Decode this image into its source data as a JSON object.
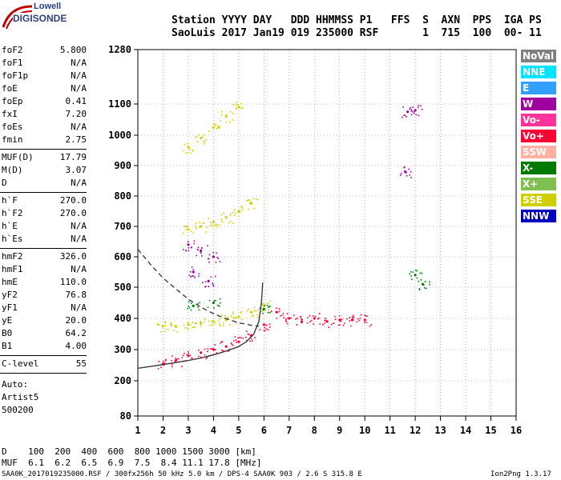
{
  "logo": {
    "line1": "Lowell",
    "line2": "DIGISONDE"
  },
  "header": {
    "line1": "Station YYYY DAY   DDD HHMMSS P1   FFS  S  AXN  PPS  IGA PS",
    "line2": "SaoLuis 2017 Jan19 019 235000 RSF       1  715  100  00- 11"
  },
  "params_groups": [
    [
      {
        "k": "foF2",
        "v": "5.800"
      },
      {
        "k": "foF1",
        "v": "N/A"
      },
      {
        "k": "foF1p",
        "v": "N/A"
      },
      {
        "k": "foE",
        "v": "N/A"
      },
      {
        "k": "foEp",
        "v": "0.41"
      },
      {
        "k": "fxI",
        "v": "7.20"
      },
      {
        "k": "foEs",
        "v": "N/A"
      },
      {
        "k": "fmin",
        "v": "2.75"
      }
    ],
    [
      {
        "k": "MUF(D)",
        "v": "17.79"
      },
      {
        "k": "M(D)",
        "v": "3.07"
      },
      {
        "k": "D",
        "v": "N/A"
      }
    ],
    [
      {
        "k": "h`F",
        "v": "270.0"
      },
      {
        "k": "h`F2",
        "v": "270.0"
      },
      {
        "k": "h`E",
        "v": "N/A"
      },
      {
        "k": "h`Es",
        "v": "N/A"
      }
    ],
    [
      {
        "k": "hmF2",
        "v": "326.0"
      },
      {
        "k": "hmF1",
        "v": "N/A"
      },
      {
        "k": "hmE",
        "v": "110.0"
      },
      {
        "k": "yF2",
        "v": "76.8"
      },
      {
        "k": "yF1",
        "v": "N/A"
      },
      {
        "k": "yE",
        "v": "20.0"
      },
      {
        "k": "B0",
        "v": "64.2"
      },
      {
        "k": "B1",
        "v": "4.00"
      }
    ],
    [
      {
        "k": "C-level",
        "v": "55"
      }
    ]
  ],
  "auto": {
    "line1": "Auto:",
    "line2": "Artist5",
    "line3": "500200"
  },
  "legend": [
    {
      "label": "NoVal",
      "color": "#808080"
    },
    {
      "label": "NNE",
      "color": "#00e5ff"
    },
    {
      "label": "E",
      "color": "#33a0ff"
    },
    {
      "label": "W",
      "color": "#a000a0"
    },
    {
      "label": "Vo-",
      "color": "#ff3399"
    },
    {
      "label": "Vo+",
      "color": "#ff0033"
    },
    {
      "label": "SSW",
      "color": "#ffb0a0"
    },
    {
      "label": "X-",
      "color": "#007a00"
    },
    {
      "label": "X+",
      "color": "#80c050"
    },
    {
      "label": "SSE",
      "color": "#d0d000"
    },
    {
      "label": "NNW",
      "color": "#0000c0"
    }
  ],
  "footer": {
    "d_line": "D    100  200  400  600  800 1000 1500 3000 [km]",
    "muf_line": "MUF  6.1  6.2  6.5  6.9  7.5  8.4 11.1 17.8 [MHz]",
    "file_line": "SAA0K_2017019235000.RSF / 300fx256h 50 kHz 5.0 km / DPS-4 SAA0K 903 / 2.6 S 315.8 E",
    "version": "Ion2Png 1.3.17"
  },
  "chart_data": {
    "type": "scatter",
    "title": "",
    "xlabel": "",
    "ylabel": "",
    "xlim": [
      1,
      16
    ],
    "ylim": [
      80,
      1280
    ],
    "x_ticks": [
      "1",
      "2",
      "3",
      "4",
      "5",
      "6",
      "7",
      "8",
      "9",
      "10",
      "11",
      "12",
      "13",
      "14",
      "15",
      "16"
    ],
    "y_ticks": [
      {
        "v": 80,
        "label": "80"
      },
      {
        "v": 200,
        "label": "200"
      },
      {
        "v": 300,
        "label": "300"
      },
      {
        "v": 400,
        "label": "400"
      },
      {
        "v": 500,
        "label": "500"
      },
      {
        "v": 600,
        "label": "600"
      },
      {
        "v": 700,
        "label": "700"
      },
      {
        "v": 800,
        "label": "800"
      },
      {
        "v": 900,
        "label": "900"
      },
      {
        "v": 1000,
        "label": "1000"
      },
      {
        "v": 1100,
        "label": "1100"
      },
      {
        "v": 1280,
        "label": "1280"
      }
    ],
    "y_scale": "nonlinear (compressed above 1000 km)",
    "grid": "dotted",
    "series": [
      {
        "name": "Vo+",
        "color": "#ff0033",
        "points": [
          [
            2.0,
            255
          ],
          [
            2.5,
            265
          ],
          [
            3.0,
            280
          ],
          [
            3.5,
            290
          ],
          [
            4.0,
            300
          ],
          [
            4.5,
            310
          ],
          [
            5.0,
            325
          ],
          [
            5.5,
            345
          ],
          [
            6.0,
            380
          ],
          [
            6.5,
            420
          ],
          [
            7.0,
            400
          ],
          [
            7.5,
            390
          ],
          [
            8.0,
            400
          ],
          [
            8.5,
            390
          ],
          [
            9.0,
            395
          ],
          [
            9.5,
            395
          ],
          [
            10.0,
            395
          ]
        ]
      },
      {
        "name": "SSE",
        "color": "#d0d000",
        "points": [
          [
            2.0,
            375
          ],
          [
            2.5,
            375
          ],
          [
            3.0,
            380
          ],
          [
            3.5,
            385
          ],
          [
            4.0,
            390
          ],
          [
            4.5,
            395
          ],
          [
            5.0,
            405
          ],
          [
            5.5,
            420
          ],
          [
            6.0,
            440
          ],
          [
            3.0,
            690
          ],
          [
            3.5,
            700
          ],
          [
            4.0,
            715
          ],
          [
            4.5,
            730
          ],
          [
            5.0,
            750
          ],
          [
            5.5,
            775
          ],
          [
            3.0,
            960
          ],
          [
            3.5,
            990
          ],
          [
            4.0,
            1025
          ],
          [
            4.5,
            1060
          ],
          [
            5.0,
            1090
          ]
        ]
      },
      {
        "name": "W",
        "color": "#a000a0",
        "points": [
          [
            3.0,
            640
          ],
          [
            3.5,
            620
          ],
          [
            4.0,
            600
          ],
          [
            3.2,
            550
          ],
          [
            3.8,
            520
          ],
          [
            12.0,
            1080
          ],
          [
            11.7,
            1075
          ],
          [
            11.6,
            880
          ]
        ]
      },
      {
        "name": "X-",
        "color": "#007a00",
        "points": [
          [
            3.2,
            440
          ],
          [
            4.0,
            450
          ],
          [
            6.0,
            430
          ],
          [
            12.0,
            540
          ],
          [
            12.3,
            510
          ]
        ]
      }
    ],
    "lines": [
      {
        "name": "trace",
        "style": "solid",
        "points": [
          [
            1,
            240
          ],
          [
            2,
            252
          ],
          [
            3,
            265
          ],
          [
            3.5,
            273
          ],
          [
            4,
            283
          ],
          [
            4.5,
            295
          ],
          [
            5,
            310
          ],
          [
            5.3,
            325
          ],
          [
            5.6,
            350
          ],
          [
            5.8,
            390
          ],
          [
            5.9,
            450
          ],
          [
            5.95,
            515
          ]
        ]
      },
      {
        "name": "profile",
        "style": "dashed",
        "points": [
          [
            1,
            625
          ],
          [
            1.5,
            575
          ],
          [
            2,
            530
          ],
          [
            2.5,
            495
          ],
          [
            3,
            462
          ],
          [
            3.5,
            436
          ],
          [
            4,
            415
          ],
          [
            4.5,
            399
          ],
          [
            5,
            386
          ],
          [
            5.5,
            378
          ],
          [
            5.8,
            375
          ]
        ]
      }
    ]
  }
}
